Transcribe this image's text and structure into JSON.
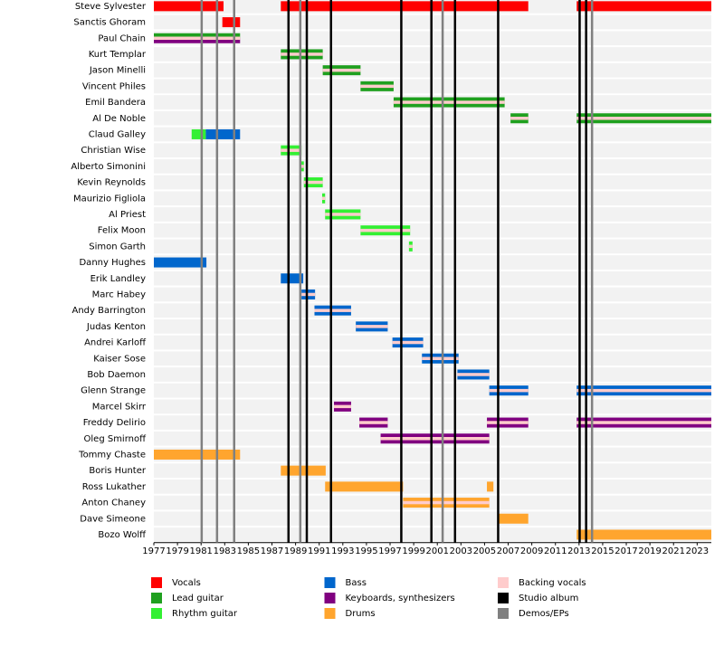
{
  "chart_data": {
    "type": "timeline",
    "members": [
      "Steve Sylvester",
      "Sanctis Ghoram",
      "Paul Chain",
      "Kurt Templar",
      "Jason Minelli",
      "Vincent Philes",
      "Emil Bandera",
      "Al De Noble",
      "Claud Galley",
      "Christian Wise",
      "Alberto Simonini",
      "Kevin Reynolds",
      "Maurizio Figliola",
      "Al Priest",
      "Felix Moon",
      "Simon Garth",
      "Danny Hughes",
      "Erik Landley",
      "Marc Habey",
      "Andy Barrington",
      "Judas Kenton",
      "Andrei Karloff",
      "Kaiser Sose",
      "Bob Daemon",
      "Glenn Strange",
      "Marcel Skirr",
      "Freddy Delirio",
      "Oleg Smirnoff",
      "Tommy Chaste",
      "Boris Hunter",
      "Ross Lukather",
      "Anton Chaney",
      "Dave Simeone",
      "Bozo Wolff"
    ],
    "xlim": [
      1977,
      2024.2
    ],
    "xticks": [
      1977,
      1979,
      1981,
      1983,
      1985,
      1987,
      1989,
      1991,
      1993,
      1995,
      1997,
      1999,
      2001,
      2003,
      2005,
      2007,
      2009,
      2011,
      2013,
      2015,
      2017,
      2019,
      2021,
      2023
    ],
    "series": [
      {
        "name": "Vocals",
        "color": "#ff0000",
        "bars": [
          {
            "member": "Steve Sylvester",
            "start": 1977,
            "end": 1982.9
          },
          {
            "member": "Steve Sylvester",
            "start": 1987.75,
            "end": 2008.7
          },
          {
            "member": "Steve Sylvester",
            "start": 2012.8,
            "end": 2024.2
          },
          {
            "member": "Sanctis Ghoram",
            "start": 1982.8,
            "end": 1984.3
          }
        ]
      },
      {
        "name": "Lead guitar",
        "color": "#1fa01f",
        "bars": [
          {
            "member": "Paul Chain",
            "start": 1977,
            "end": 1984.3
          },
          {
            "member": "Kurt Templar",
            "start": 1987.75,
            "end": 1991.3
          },
          {
            "member": "Jason Minelli",
            "start": 1991.3,
            "end": 1994.5
          },
          {
            "member": "Vincent Philes",
            "start": 1994.5,
            "end": 1997.3
          },
          {
            "member": "Emil Bandera",
            "start": 1997.3,
            "end": 2006.7
          },
          {
            "member": "Al De Noble",
            "start": 2007.2,
            "end": 2008.7
          },
          {
            "member": "Al De Noble",
            "start": 2012.8,
            "end": 2024.2
          }
        ]
      },
      {
        "name": "Rhythm guitar",
        "color": "#33f033",
        "bars": [
          {
            "member": "Claud Galley",
            "start": 1980.2,
            "end": 1981.4
          },
          {
            "member": "Christian Wise",
            "start": 1987.75,
            "end": 1989.5
          },
          {
            "member": "Alberto Simonini",
            "start": 1989.4,
            "end": 1989.7
          },
          {
            "member": "Kevin Reynolds",
            "start": 1989.7,
            "end": 1991.3
          },
          {
            "member": "Maurizio Figliola",
            "start": 1991.25,
            "end": 1991.5
          },
          {
            "member": "Al Priest",
            "start": 1991.5,
            "end": 1994.5
          },
          {
            "member": "Felix Moon",
            "start": 1994.5,
            "end": 1998.7
          },
          {
            "member": "Simon Garth",
            "start": 1998.6,
            "end": 1998.9
          }
        ]
      },
      {
        "name": "Bass",
        "color": "#0066cc",
        "bars": [
          {
            "member": "Claud Galley",
            "start": 1981.4,
            "end": 1984.3
          },
          {
            "member": "Danny Hughes",
            "start": 1977,
            "end": 1981.45
          },
          {
            "member": "Erik Landley",
            "start": 1987.75,
            "end": 1989.65
          },
          {
            "member": "Marc Habey",
            "start": 1989.5,
            "end": 1990.65
          },
          {
            "member": "Andy Barrington",
            "start": 1990.6,
            "end": 1993.7
          },
          {
            "member": "Judas Kenton",
            "start": 1994.1,
            "end": 1996.8
          },
          {
            "member": "Andrei Karloff",
            "start": 1997.2,
            "end": 1999.8
          },
          {
            "member": "Kaiser Sose",
            "start": 1999.7,
            "end": 2002.8
          },
          {
            "member": "Bob Daemon",
            "start": 2002.7,
            "end": 2005.4
          },
          {
            "member": "Glenn Strange",
            "start": 2005.4,
            "end": 2008.7
          },
          {
            "member": "Glenn Strange",
            "start": 2012.8,
            "end": 2024.2
          }
        ]
      },
      {
        "name": "Keyboards, synthesizers",
        "color": "#800080",
        "bars": [
          {
            "member": "Paul Chain",
            "start": 1977,
            "end": 1984.3
          },
          {
            "member": "Marcel Skirr",
            "start": 1992.25,
            "end": 1993.7
          },
          {
            "member": "Freddy Delirio",
            "start": 1994.4,
            "end": 1996.8
          },
          {
            "member": "Freddy Delirio",
            "start": 2005.2,
            "end": 2008.7
          },
          {
            "member": "Freddy Delirio",
            "start": 2012.8,
            "end": 2024.2
          },
          {
            "member": "Oleg Smirnoff",
            "start": 1996.2,
            "end": 2005.4
          }
        ]
      },
      {
        "name": "Drums",
        "color": "#ffa52e",
        "bars": [
          {
            "member": "Tommy Chaste",
            "start": 1977,
            "end": 1984.3
          },
          {
            "member": "Boris Hunter",
            "start": 1987.75,
            "end": 1991.55
          },
          {
            "member": "Ross Lukather",
            "start": 1991.5,
            "end": 1998.1
          },
          {
            "member": "Ross Lukather",
            "start": 2005.2,
            "end": 2005.75
          },
          {
            "member": "Anton Chaney",
            "start": 1998.1,
            "end": 2005.4
          },
          {
            "member": "Dave Simeone",
            "start": 2006.15,
            "end": 2008.7
          },
          {
            "member": "Bozo Wolff",
            "start": 2012.8,
            "end": 2024.2
          }
        ]
      },
      {
        "name": "Backing vocals",
        "color": "#ffcccc",
        "bars": [
          {
            "member": "Paul Chain",
            "start": 1977,
            "end": 1984.3
          },
          {
            "member": "Kurt Templar",
            "start": 1987.75,
            "end": 1991.3
          },
          {
            "member": "Jason Minelli",
            "start": 1991.3,
            "end": 1994.5
          },
          {
            "member": "Vincent Philes",
            "start": 1994.5,
            "end": 1997.3
          },
          {
            "member": "Emil Bandera",
            "start": 1997.3,
            "end": 2006.7
          },
          {
            "member": "Al De Noble",
            "start": 2007.2,
            "end": 2008.7
          },
          {
            "member": "Al De Noble",
            "start": 2012.8,
            "end": 2024.2
          },
          {
            "member": "Christian Wise",
            "start": 1987.75,
            "end": 1989.5
          },
          {
            "member": "Alberto Simonini",
            "start": 1989.4,
            "end": 1989.7
          },
          {
            "member": "Kevin Reynolds",
            "start": 1989.7,
            "end": 1991.3
          },
          {
            "member": "Maurizio Figliola",
            "start": 1991.25,
            "end": 1991.5
          },
          {
            "member": "Al Priest",
            "start": 1991.5,
            "end": 1994.5
          },
          {
            "member": "Felix Moon",
            "start": 1994.5,
            "end": 1998.7
          },
          {
            "member": "Simon Garth",
            "start": 1998.6,
            "end": 1998.9
          },
          {
            "member": "Marc Habey",
            "start": 1989.5,
            "end": 1990.65
          },
          {
            "member": "Andy Barrington",
            "start": 1990.6,
            "end": 1993.7
          },
          {
            "member": "Judas Kenton",
            "start": 1994.1,
            "end": 1996.8
          },
          {
            "member": "Andrei Karloff",
            "start": 1997.2,
            "end": 1999.8
          },
          {
            "member": "Kaiser Sose",
            "start": 1999.7,
            "end": 2002.8
          },
          {
            "member": "Bob Daemon",
            "start": 2002.7,
            "end": 2005.4
          },
          {
            "member": "Glenn Strange",
            "start": 2005.4,
            "end": 2008.7
          },
          {
            "member": "Glenn Strange",
            "start": 2012.8,
            "end": 2024.2
          },
          {
            "member": "Marcel Skirr",
            "start": 1992.25,
            "end": 1993.7
          },
          {
            "member": "Freddy Delirio",
            "start": 1994.4,
            "end": 1996.8
          },
          {
            "member": "Freddy Delirio",
            "start": 2005.2,
            "end": 2008.7
          },
          {
            "member": "Freddy Delirio",
            "start": 2012.8,
            "end": 2024.2
          },
          {
            "member": "Oleg Smirnoff",
            "start": 1996.2,
            "end": 2005.4
          },
          {
            "member": "Anton Chaney",
            "start": 1998.1,
            "end": 2005.4
          }
        ]
      },
      {
        "name": "Studio album",
        "color": "#000000",
        "years": [
          1988.4,
          1989.95,
          1992.0,
          1997.95,
          2000.5,
          2002.5,
          2006.15,
          2013.05,
          2013.6
        ]
      },
      {
        "name": "Demos/EPs",
        "color": "#808080",
        "years": [
          1981.05,
          1982.35,
          1983.8,
          1989.4,
          2001.45,
          2014.1
        ]
      }
    ]
  }
}
